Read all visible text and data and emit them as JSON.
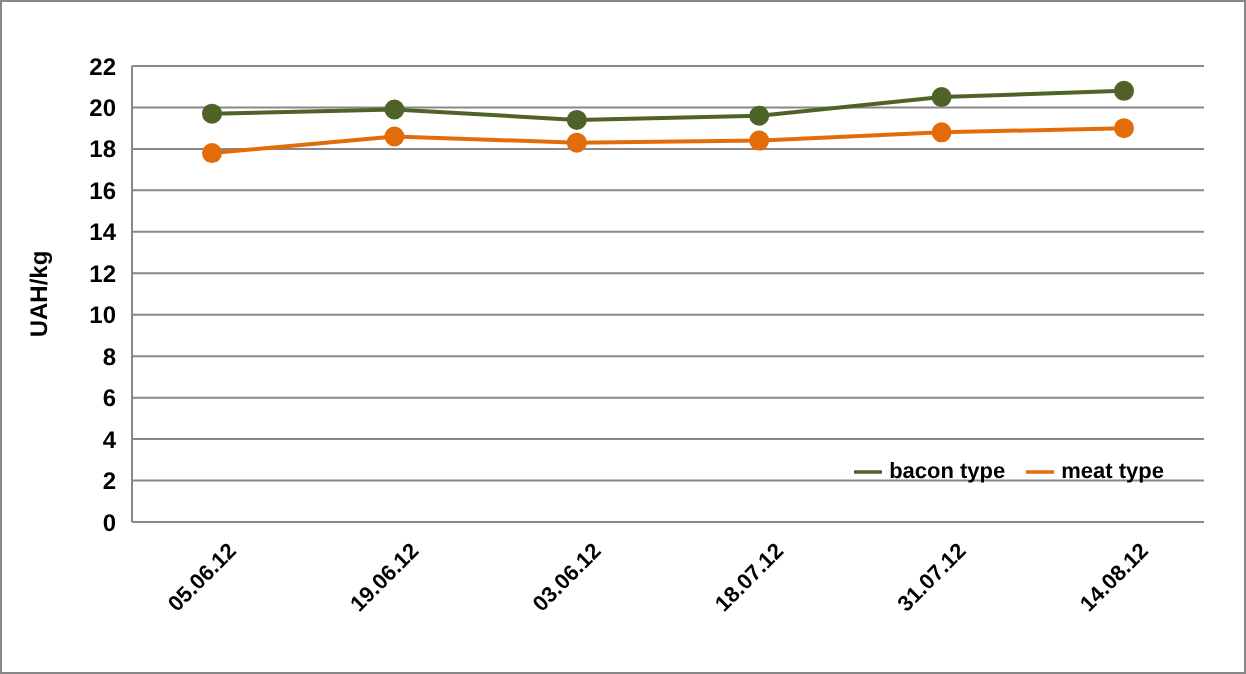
{
  "chart_data": {
    "type": "line",
    "ylabel": "UAH/kg",
    "categories": [
      "05.06.12",
      "19.06.12",
      "03.06.12",
      "18.07.12",
      "31.07.12",
      "14.08.12"
    ],
    "series": [
      {
        "name": "meat type",
        "color": "#e36c0a",
        "values": [
          17.8,
          18.6,
          18.3,
          18.4,
          18.8,
          19.0
        ]
      },
      {
        "name": "bacon type",
        "color": "#4f6228",
        "values": [
          19.7,
          19.9,
          19.4,
          19.6,
          20.5,
          20.8
        ]
      }
    ],
    "ylim": [
      0,
      22
    ],
    "yticks": [
      0,
      2,
      4,
      6,
      8,
      10,
      12,
      14,
      16,
      18,
      20,
      22
    ],
    "grid": "y",
    "legend": "bottom right",
    "marker": "circle",
    "line_style": "solid"
  }
}
